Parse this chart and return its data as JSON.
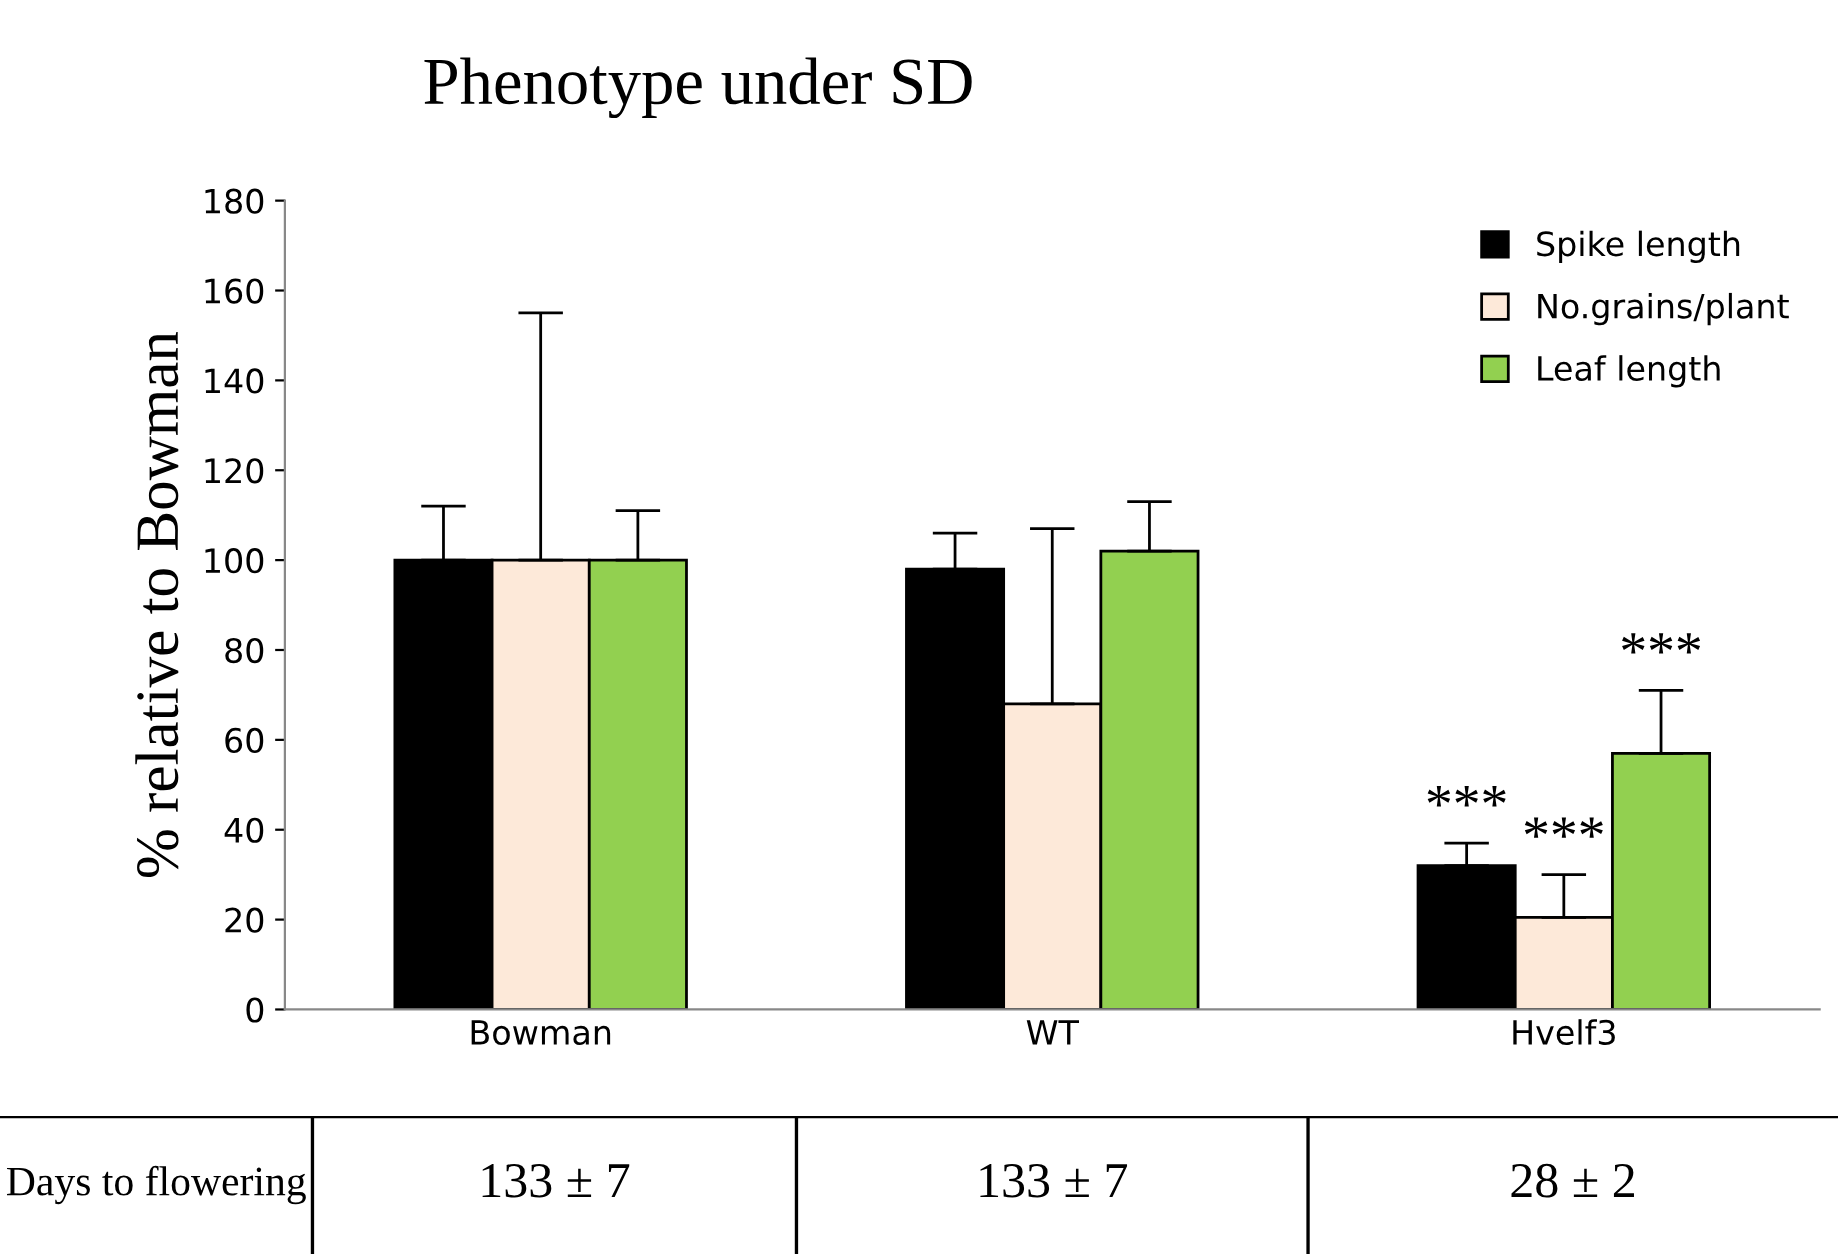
{
  "chart_data": {
    "type": "bar",
    "title": "Phenotype under SD",
    "ylabel": "% relative to Bowman",
    "categories": [
      "Bowman",
      "WT",
      "Hvelf3"
    ],
    "series": [
      {
        "name": "Spike length",
        "color": "#000000",
        "values": [
          100,
          98,
          32
        ],
        "errors": [
          [
            100,
            112
          ],
          [
            98,
            106
          ],
          [
            32,
            37
          ]
        ]
      },
      {
        "name": "No.grains/plant",
        "color": "#fde9d9",
        "values": [
          100,
          68,
          20.5
        ],
        "errors": [
          [
            100,
            155
          ],
          [
            68,
            107
          ],
          [
            20.5,
            30
          ]
        ]
      },
      {
        "name": "Leaf length",
        "color": "#92d050",
        "values": [
          100,
          102,
          57
        ],
        "errors": [
          [
            100,
            111
          ],
          [
            102,
            113
          ],
          [
            57,
            71
          ]
        ]
      }
    ],
    "ylim": [
      0,
      180
    ],
    "yticks": [
      0,
      20,
      40,
      60,
      80,
      100,
      120,
      140,
      160,
      180
    ],
    "legend": "top right",
    "annotations": [
      "***",
      "***",
      "***",
      "Days to flowering",
      "133 ± 7",
      "133 ± 7",
      "28 ± 2"
    ]
  }
}
